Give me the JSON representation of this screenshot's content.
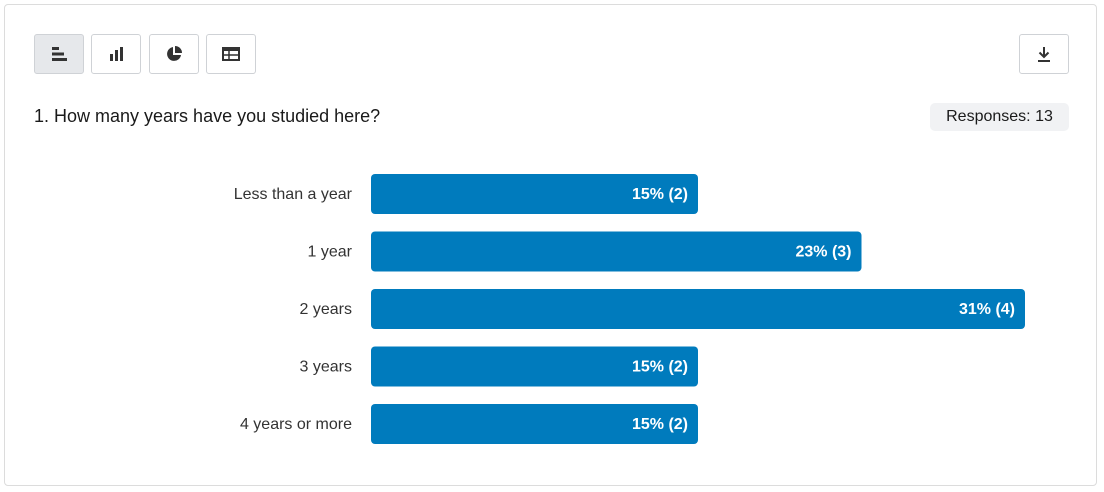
{
  "chart_data": {
    "type": "bar",
    "orientation": "horizontal",
    "title": "1. How many years have you studied here?",
    "responses": "Responses: 13",
    "categories": [
      "Less than a year",
      "1 year",
      "2 years",
      "3 years",
      "4 years or more"
    ],
    "values": [
      2,
      3,
      4,
      2,
      2
    ],
    "value_labels": [
      "15% (2)",
      "23% (3)",
      "31% (4)",
      "15% (2)",
      "15% (2)"
    ],
    "color": "#007bbd"
  }
}
